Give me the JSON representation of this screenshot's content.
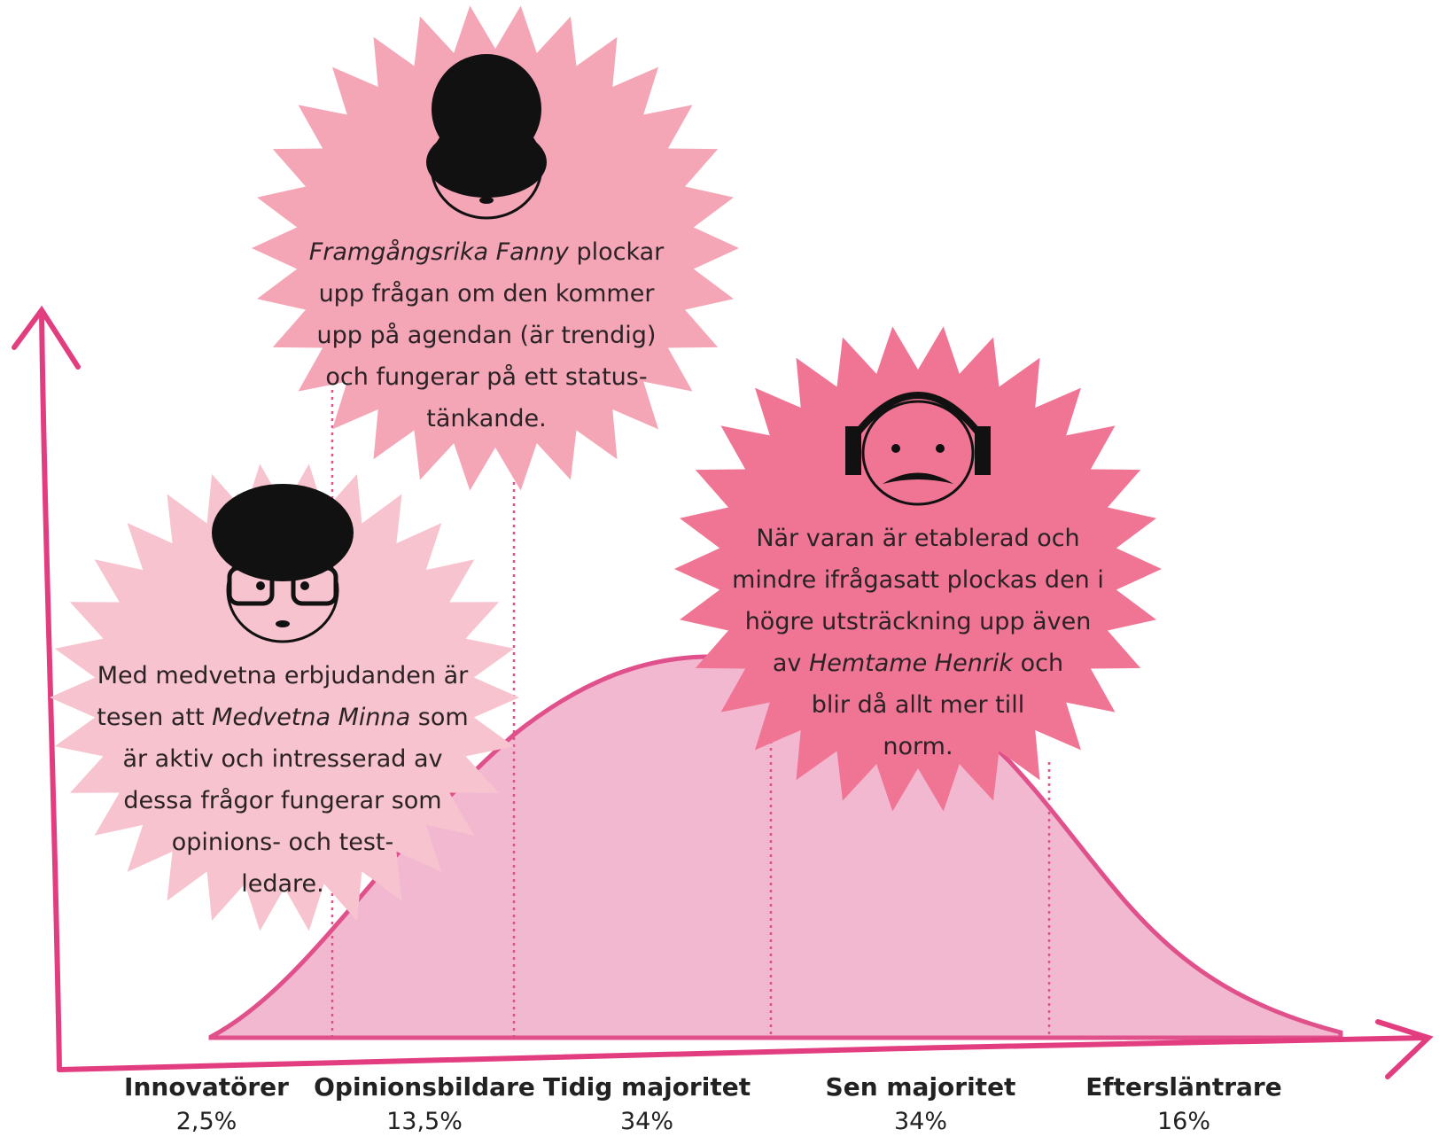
{
  "segments": [
    {
      "label": "Innovatörer",
      "share": "2,5%"
    },
    {
      "label": "Opinionsbildare",
      "share": "13,5%"
    },
    {
      "label": "Tidig majoritet",
      "share": "34%"
    },
    {
      "label": "Sen majoritet",
      "share": "34%"
    },
    {
      "label": "Eftersläntrare",
      "share": "16%"
    }
  ],
  "bubbles": [
    {
      "lines": [
        [
          {
            "text": "Framgångsrika Fanny",
            "italic": true
          },
          {
            "text": " plockar"
          }
        ],
        [
          {
            "text": "upp frågan om den kommer"
          }
        ],
        [
          {
            "text": "upp på agendan (är trendig)"
          }
        ],
        [
          {
            "text": "och fungerar på ett status-"
          }
        ],
        [
          {
            "text": "tänkande."
          }
        ]
      ]
    },
    {
      "lines": [
        [
          {
            "text": "Med medvetna erbjudanden är"
          }
        ],
        [
          {
            "text": "tesen att "
          },
          {
            "text": "Medvetna Minna",
            "italic": true
          },
          {
            "text": " som"
          }
        ],
        [
          {
            "text": "är aktiv och intresserad av"
          }
        ],
        [
          {
            "text": "dessa frågor fungerar som"
          }
        ],
        [
          {
            "text": "opinions- och test-"
          }
        ],
        [
          {
            "text": "ledare."
          }
        ]
      ]
    },
    {
      "lines": [
        [
          {
            "text": "När varan är etablerad och"
          }
        ],
        [
          {
            "text": "mindre ifrågasatt plockas den i"
          }
        ],
        [
          {
            "text": "högre utsträckning upp även"
          }
        ],
        [
          {
            "text": "av "
          },
          {
            "text": "Hemtame Henrik",
            "italic": true
          },
          {
            "text": " och"
          }
        ],
        [
          {
            "text": "blir då allt mer till"
          }
        ],
        [
          {
            "text": "norm."
          }
        ]
      ]
    }
  ]
}
